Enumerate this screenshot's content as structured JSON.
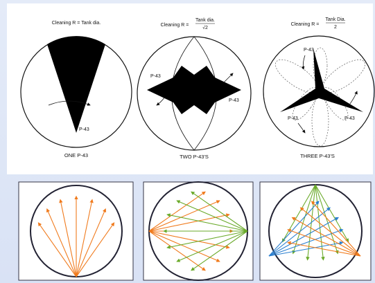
{
  "panels": [
    {
      "formula": {
        "lhs": "Cleaning R =",
        "rhs": "Tank dia."
      },
      "labels": [
        "P-43"
      ],
      "caption": "ONE P-43"
    },
    {
      "formula": {
        "lhs": "Cleaning R =",
        "numerator": "Tank dia.",
        "denominator": "√2"
      },
      "labels": [
        "P-43",
        "P-43"
      ],
      "caption": "TWO P-43'S"
    },
    {
      "formula": {
        "lhs": "Cleaning R =",
        "numerator": "Tank Dia.",
        "denominator": "2"
      },
      "labels": [
        "P-43",
        "P-43",
        "P-43"
      ],
      "caption": "THREE P-43'S"
    }
  ]
}
